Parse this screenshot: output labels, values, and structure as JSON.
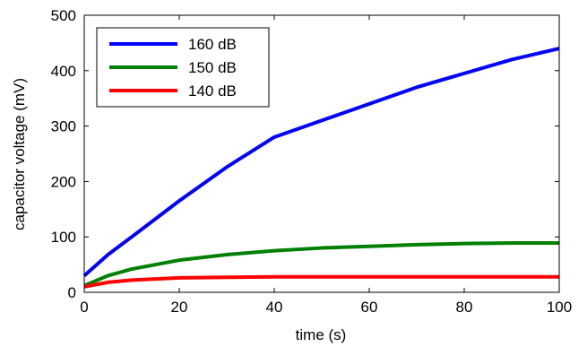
{
  "chart_data": {
    "type": "line",
    "title": "",
    "xlabel": "time (s)",
    "ylabel": "capacitor voltage (mV)",
    "xlim": [
      0,
      100
    ],
    "ylim": [
      0,
      500
    ],
    "xticks": [
      0,
      20,
      40,
      60,
      80,
      100
    ],
    "yticks": [
      0,
      100,
      200,
      300,
      400,
      500
    ],
    "xtick_labels": [
      "0",
      "20",
      "40",
      "60",
      "80",
      "100"
    ],
    "ytick_labels": [
      "0",
      "100",
      "200",
      "300",
      "400",
      "500"
    ],
    "grid": false,
    "legend_position": "top-left",
    "series": [
      {
        "name": "160 dB",
        "color": "#0000ff",
        "x": [
          0,
          5,
          10,
          20,
          30,
          40,
          50,
          60,
          70,
          80,
          90,
          100
        ],
        "y": [
          30,
          68,
          100,
          165,
          226,
          280,
          310,
          340,
          370,
          395,
          420,
          440
        ]
      },
      {
        "name": "150 dB",
        "color": "#008000",
        "x": [
          0,
          5,
          10,
          20,
          30,
          40,
          50,
          60,
          70,
          80,
          90,
          100
        ],
        "y": [
          12,
          30,
          42,
          58,
          68,
          75,
          80,
          83,
          86,
          88,
          89,
          89
        ]
      },
      {
        "name": "140 dB",
        "color": "#ff0000",
        "x": [
          0,
          5,
          10,
          20,
          30,
          40,
          50,
          60,
          70,
          80,
          90,
          100
        ],
        "y": [
          10,
          18,
          22,
          26,
          27,
          28,
          28,
          28,
          28,
          28,
          28,
          28
        ]
      }
    ]
  }
}
